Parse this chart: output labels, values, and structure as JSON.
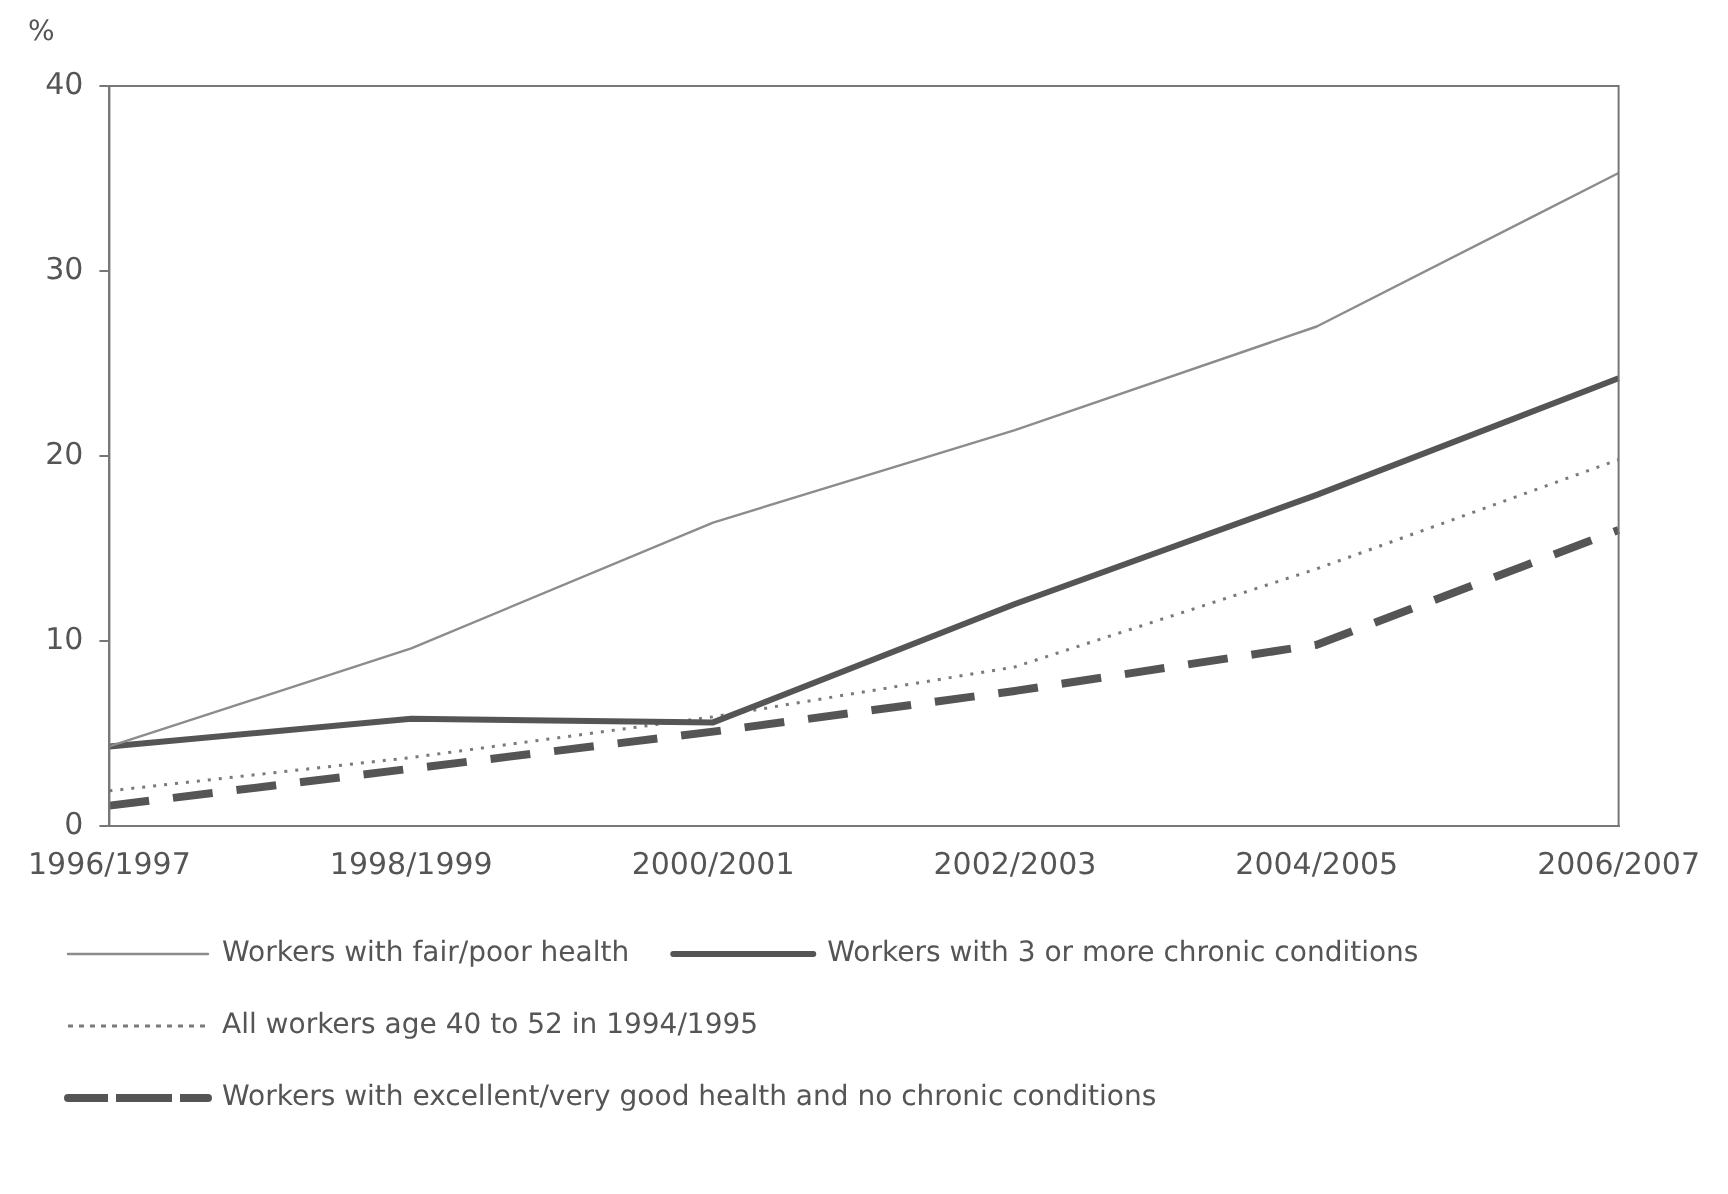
{
  "chart_data": {
    "type": "line",
    "ylabel": "%",
    "categories": [
      "1996/1997",
      "1998/1999",
      "2000/2001",
      "2002/2003",
      "2004/2005",
      "2006/2007"
    ],
    "series": [
      {
        "name": "Workers with fair/poor health",
        "color": "#8c8c8c",
        "line_style": "solid",
        "values": [
          4.3,
          9.6,
          16.4,
          21.4,
          27.0,
          35.3
        ]
      },
      {
        "name": "Workers with 3 or more chronic conditions",
        "color": "#555555",
        "line_style": "solid",
        "values": [
          4.3,
          5.8,
          5.6,
          12.0,
          17.9,
          24.2
        ]
      },
      {
        "name": "All workers age 40 to 52 in 1994/1995",
        "color": "#7a7a7a",
        "line_style": "dotted",
        "values": [
          1.9,
          3.7,
          5.9,
          8.6,
          13.9,
          19.8
        ]
      },
      {
        "name": "Workers with excellent/very good health and no chronic conditions",
        "color": "#555555",
        "line_style": "dashed",
        "values": [
          1.1,
          3.1,
          5.1,
          7.3,
          9.8,
          16.0
        ]
      }
    ],
    "ylim": [
      0,
      40
    ],
    "yticks": [
      0,
      10,
      20,
      30,
      40
    ],
    "grid": false,
    "legend": "bottom",
    "marker": "none"
  }
}
